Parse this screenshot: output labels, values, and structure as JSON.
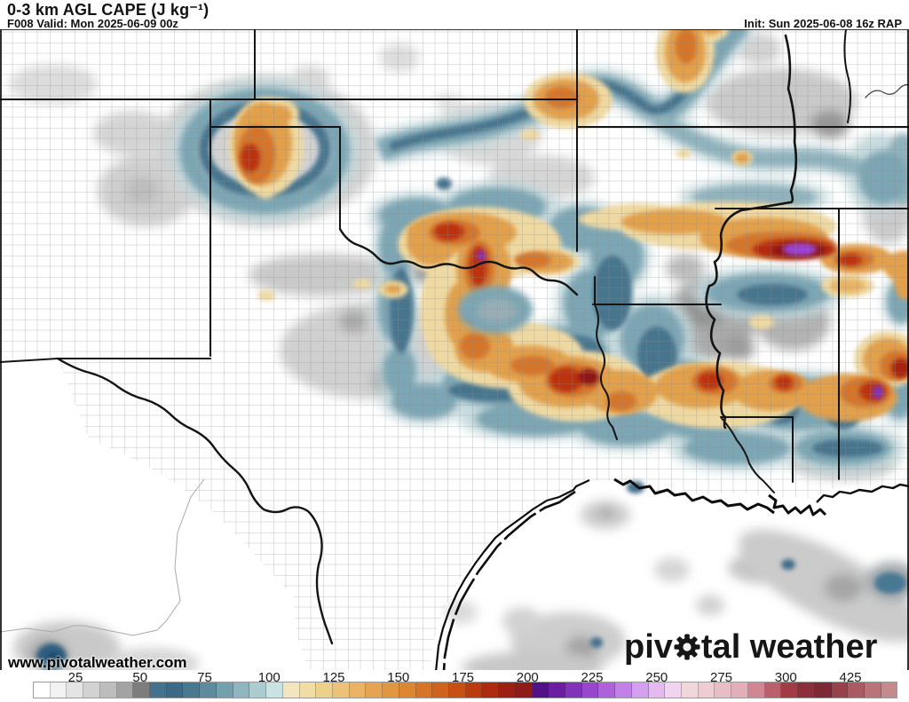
{
  "header": {
    "title": "0-3 km AGL CAPE (J kg⁻¹)",
    "subtitle": "F008 Valid: Mon 2025-06-09 00z",
    "init": "Init: Sun 2025-06-08 16z RAP"
  },
  "branding": {
    "watermark": "www.pivotalweather.com",
    "logo_pre": "piv",
    "logo_post": "tal weather"
  },
  "colorbar": {
    "units": "J kg⁻¹",
    "tick_labels": [
      "25",
      "50",
      "75",
      "100",
      "125",
      "150",
      "175",
      "200",
      "225",
      "250",
      "275",
      "300",
      "425"
    ],
    "colors": [
      "#ffffff",
      "#f2f2f2",
      "#e4e4e4",
      "#d2d2d2",
      "#bdbdbd",
      "#a3a3a3",
      "#7d7d7d",
      "#45718c",
      "#3c6a87",
      "#49798f",
      "#5d8a9c",
      "#74a0ae",
      "#8fb6c0",
      "#abcdd2",
      "#c9e2e2",
      "#f2e6c0",
      "#f0dda6",
      "#eed08d",
      "#ebc278",
      "#e8b463",
      "#e5a550",
      "#e29640",
      "#dd8531",
      "#d77425",
      "#d0621b",
      "#c85013",
      "#bc3b0e",
      "#ad2a10",
      "#9d1f14",
      "#8e1a1a",
      "#511286",
      "#6b1da3",
      "#8132bb",
      "#9747cd",
      "#ad62da",
      "#c180e5",
      "#d49fee",
      "#e4baf0",
      "#efd3ef",
      "#f0d7dc",
      "#edccd2",
      "#e8bec6",
      "#e2aeb8",
      "#d08794",
      "#bb5f6d",
      "#a33b47",
      "#8c2e3c",
      "#7f2936",
      "#95424c",
      "#a85b62",
      "#b87478",
      "#c48b8d"
    ]
  },
  "map_palette": {
    "low_gray": "#c9c9c9",
    "mid_blue": "#7ba6b4",
    "deep_blue": "#46748e",
    "orange": "#e2a04c",
    "red": "#bb3110",
    "purple": "#9b43d6"
  }
}
